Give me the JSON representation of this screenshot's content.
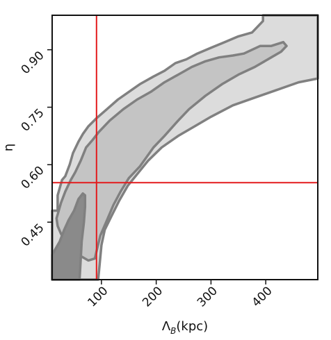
{
  "chart_data": {
    "type": "contour",
    "xlabel_main": "Λ",
    "xlabel_sub": "B",
    "xlabel_unit": "(kpc)",
    "ylabel": "η",
    "xlim": [
      10,
      495
    ],
    "ylim": [
      0.3,
      0.99
    ],
    "xticks": [
      100,
      200,
      300,
      400
    ],
    "xtick_labels": [
      "100",
      "200",
      "300",
      "400"
    ],
    "yticks": [
      0.45,
      0.6,
      0.75,
      0.9
    ],
    "ytick_labels": [
      "0.45",
      "0.60",
      "0.75",
      "0.90"
    ],
    "reference_lines": {
      "x": 91,
      "y": 0.553,
      "color": "#e31a1c"
    },
    "grid": false,
    "levels": [
      {
        "fill": "#dcdcdc",
        "points": [
          [
            10,
            0.3
          ],
          [
            10,
            0.48
          ],
          [
            20,
            0.48
          ],
          [
            20,
            0.52
          ],
          [
            28,
            0.56
          ],
          [
            34,
            0.57
          ],
          [
            42,
            0.6
          ],
          [
            48,
            0.63
          ],
          [
            58,
            0.66
          ],
          [
            66,
            0.68
          ],
          [
            76,
            0.7
          ],
          [
            90,
            0.72
          ],
          [
            110,
            0.745
          ],
          [
            130,
            0.77
          ],
          [
            150,
            0.79
          ],
          [
            170,
            0.81
          ],
          [
            195,
            0.83
          ],
          [
            215,
            0.845
          ],
          [
            235,
            0.865
          ],
          [
            255,
            0.875
          ],
          [
            275,
            0.89
          ],
          [
            300,
            0.905
          ],
          [
            325,
            0.92
          ],
          [
            350,
            0.935
          ],
          [
            375,
            0.945
          ],
          [
            395,
            0.975
          ],
          [
            395,
            0.99
          ],
          [
            495,
            0.99
          ],
          [
            495,
            0.825
          ],
          [
            460,
            0.815
          ],
          [
            420,
            0.795
          ],
          [
            380,
            0.775
          ],
          [
            340,
            0.755
          ],
          [
            300,
            0.725
          ],
          [
            270,
            0.7
          ],
          [
            240,
            0.675
          ],
          [
            210,
            0.645
          ],
          [
            185,
            0.61
          ],
          [
            165,
            0.575
          ],
          [
            148,
            0.545
          ],
          [
            132,
            0.505
          ],
          [
            118,
            0.465
          ],
          [
            106,
            0.43
          ],
          [
            100,
            0.39
          ],
          [
            94,
            0.3
          ]
        ]
      },
      {
        "fill": "#c4c4c4",
        "points": [
          [
            18,
            0.46
          ],
          [
            26,
            0.5
          ],
          [
            34,
            0.53
          ],
          [
            44,
            0.56
          ],
          [
            52,
            0.58
          ],
          [
            62,
            0.61
          ],
          [
            72,
            0.645
          ],
          [
            84,
            0.665
          ],
          [
            95,
            0.685
          ],
          [
            115,
            0.715
          ],
          [
            140,
            0.745
          ],
          [
            165,
            0.77
          ],
          [
            190,
            0.79
          ],
          [
            215,
            0.815
          ],
          [
            240,
            0.835
          ],
          [
            265,
            0.855
          ],
          [
            290,
            0.87
          ],
          [
            315,
            0.88
          ],
          [
            340,
            0.885
          ],
          [
            360,
            0.89
          ],
          [
            390,
            0.91
          ],
          [
            410,
            0.91
          ],
          [
            432,
            0.92
          ],
          [
            438,
            0.91
          ],
          [
            428,
            0.895
          ],
          [
            410,
            0.88
          ],
          [
            380,
            0.855
          ],
          [
            350,
            0.835
          ],
          [
            320,
            0.81
          ],
          [
            290,
            0.78
          ],
          [
            260,
            0.745
          ],
          [
            240,
            0.715
          ],
          [
            215,
            0.675
          ],
          [
            195,
            0.645
          ],
          [
            170,
            0.595
          ],
          [
            150,
            0.565
          ],
          [
            135,
            0.53
          ],
          [
            122,
            0.495
          ],
          [
            110,
            0.455
          ],
          [
            98,
            0.415
          ],
          [
            92,
            0.38
          ],
          [
            88,
            0.355
          ],
          [
            76,
            0.35
          ],
          [
            64,
            0.36
          ],
          [
            50,
            0.37
          ],
          [
            38,
            0.39
          ],
          [
            26,
            0.42
          ],
          [
            20,
            0.44
          ]
        ]
      },
      {
        "fill": "#8a8a8a",
        "points": [
          [
            10,
            0.3
          ],
          [
            10,
            0.365
          ],
          [
            18,
            0.385
          ],
          [
            24,
            0.4
          ],
          [
            32,
            0.43
          ],
          [
            40,
            0.455
          ],
          [
            50,
            0.48
          ],
          [
            58,
            0.51
          ],
          [
            66,
            0.525
          ],
          [
            70,
            0.52
          ],
          [
            70,
            0.49
          ],
          [
            68,
            0.45
          ],
          [
            64,
            0.4
          ],
          [
            62,
            0.35
          ],
          [
            60,
            0.3
          ]
        ]
      }
    ]
  }
}
